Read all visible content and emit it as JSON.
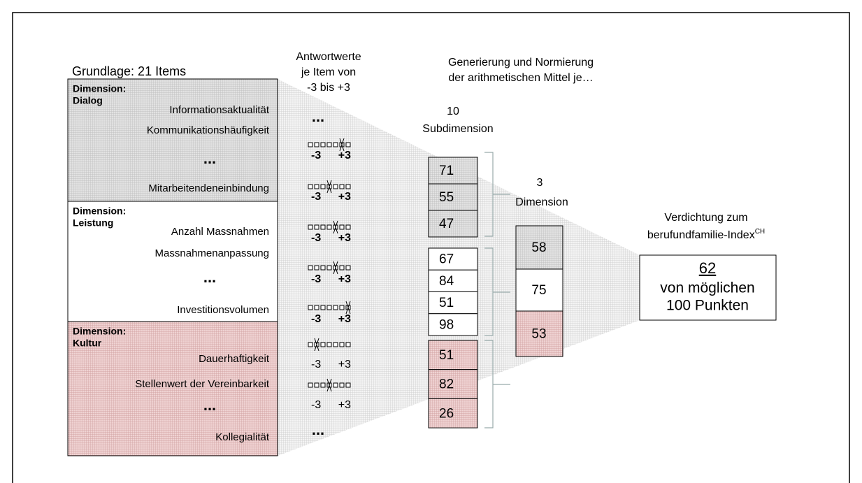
{
  "grundlage": "Grundlage: 21 Items",
  "dimensions": [
    {
      "label": "Dimension:",
      "name": "Dialog",
      "items": [
        "Informationsaktualität",
        "Kommunikationshäufigkeit",
        "...",
        "Mitarbeitendeneinbindung"
      ]
    },
    {
      "label": "Dimension:",
      "name": "Leistung",
      "items": [
        "Anzahl Massnahmen",
        "Massnahmenanpassung",
        "...",
        "Investitionsvolumen"
      ]
    },
    {
      "label": "Dimension:",
      "name": "Kultur",
      "items": [
        "Dauerhaftigkeit",
        "Stellenwert der Vereinbarkeit",
        "...",
        "Kollegialität"
      ]
    }
  ],
  "antwortwerte": {
    "title": [
      "Antwortwerte",
      "je Item von",
      "-3 bis +3"
    ],
    "ellipsis_top": "...",
    "ellipsis_bottom": "...",
    "scales": [
      {
        "min": "-3",
        "max": "+3",
        "answer": 2,
        "bold": true
      },
      {
        "min": "-3",
        "max": "+3",
        "answer": 0,
        "bold": true
      },
      {
        "min": "-3",
        "max": "+3",
        "answer": 1,
        "bold": true
      },
      {
        "min": "-3",
        "max": "+3",
        "answer": 1,
        "bold": true
      },
      {
        "min": "-3",
        "max": "+3",
        "answer": 3,
        "bold": true
      },
      {
        "min": "-3",
        "max": "+3",
        "answer": -2,
        "bold": false
      },
      {
        "min": "-3",
        "max": "+3",
        "answer": 0,
        "bold": false
      }
    ]
  },
  "generierung": [
    "Generierung und Normierung",
    "der arithmetischen Mittel je…"
  ],
  "subdimension": {
    "count": "10",
    "label": "Subdimension",
    "groups": [
      [
        71,
        55,
        47
      ],
      [
        67,
        84,
        51,
        98
      ],
      [
        51,
        82,
        26
      ]
    ]
  },
  "dimension": {
    "count": "3",
    "label": "Dimension",
    "values": [
      58,
      75,
      53
    ]
  },
  "index": {
    "title": "Verdichtung zum",
    "name": "berufundfamilie-Index",
    "sup": "CH",
    "value": 62,
    "line1": "von möglichen",
    "line2": "100 Punkten"
  }
}
